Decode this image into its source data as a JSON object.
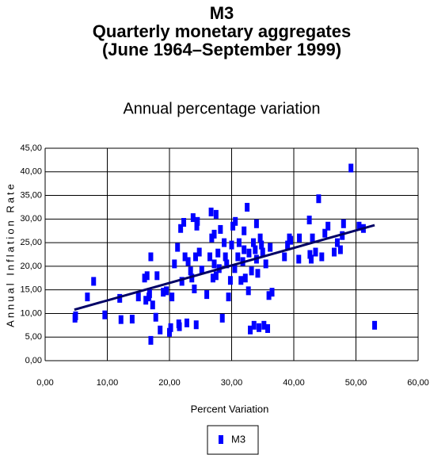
{
  "chart_data": {
    "type": "scatter",
    "title": [
      "M3",
      "Quarterly monetary aggregates",
      "(June 1964–September 1999)"
    ],
    "subtitle": "Annual percentage variation",
    "x_label": "Percent Variation",
    "y_label": "Annual Inflation Rate",
    "xlim": [
      0,
      60
    ],
    "ylim": [
      0,
      45
    ],
    "xticks": [
      {
        "value": 0,
        "label": "0,00"
      },
      {
        "value": 10,
        "label": "10,00"
      },
      {
        "value": 20,
        "label": "20,00"
      },
      {
        "value": 30,
        "label": "30,00"
      },
      {
        "value": 40,
        "label": "40,00"
      },
      {
        "value": 50,
        "label": "50,00"
      },
      {
        "value": 60,
        "label": "60,00"
      }
    ],
    "yticks": [
      {
        "value": 0,
        "label": "0,00"
      },
      {
        "value": 5,
        "label": "5,00"
      },
      {
        "value": 10,
        "label": "10,00"
      },
      {
        "value": 15,
        "label": "15,00"
      },
      {
        "value": 20,
        "label": "20,00"
      },
      {
        "value": 25,
        "label": "25,00"
      },
      {
        "value": 30,
        "label": "30,00"
      },
      {
        "value": 35,
        "label": "35,00"
      },
      {
        "value": 40,
        "label": "40,00"
      },
      {
        "value": 45,
        "label": "45,00"
      }
    ],
    "grid": true,
    "series": [
      {
        "name": "M3",
        "color": "#0000ff",
        "x": [
          4.8,
          4.9,
          6.8,
          7.8,
          9.6,
          12.0,
          12.2,
          14.0,
          15.0,
          16.0,
          16.2,
          16.4,
          16.7,
          16.8,
          17.0,
          17.0,
          17.3,
          17.8,
          18.0,
          18.5,
          19.0,
          19.5,
          20.0,
          20.2,
          20.4,
          20.8,
          21.3,
          21.5,
          21.6,
          21.8,
          22.0,
          22.3,
          22.5,
          22.8,
          23.0,
          23.4,
          23.6,
          23.8,
          24.0,
          24.2,
          24.3,
          24.4,
          24.5,
          24.8,
          25.2,
          26.0,
          26.5,
          26.7,
          26.8,
          27.0,
          27.2,
          27.2,
          27.5,
          27.5,
          27.8,
          28.0,
          28.2,
          28.5,
          28.8,
          29.0,
          29.2,
          29.5,
          29.8,
          30.0,
          30.2,
          30.5,
          30.6,
          31.0,
          31.2,
          31.5,
          31.8,
          32.0,
          32.0,
          32.2,
          32.5,
          32.7,
          32.8,
          33.0,
          33.2,
          33.5,
          33.6,
          33.8,
          34.0,
          34.0,
          34.2,
          34.4,
          34.6,
          34.8,
          35.0,
          35.2,
          35.5,
          35.8,
          36.0,
          36.2,
          36.5,
          38.5,
          39.0,
          39.3,
          39.5,
          40.8,
          40.9,
          42.5,
          42.6,
          42.8,
          43.0,
          43.5,
          44.0,
          44.5,
          45.0,
          45.5,
          46.5,
          47.0,
          47.5,
          47.8,
          48.0,
          49.2,
          50.5,
          51.2,
          53.0
        ],
        "values": [
          9.0,
          9.5,
          13.5,
          16.8,
          9.7,
          13.2,
          8.7,
          8.8,
          13.5,
          17.5,
          12.8,
          18.0,
          13.5,
          14.2,
          22.0,
          4.3,
          11.8,
          9.2,
          18.0,
          6.5,
          14.5,
          14.8,
          6.0,
          7.0,
          13.5,
          20.5,
          24.0,
          7.8,
          7.2,
          28.0,
          16.8,
          29.3,
          22.0,
          8.0,
          21.0,
          19.0,
          17.5,
          30.3,
          15.2,
          22.0,
          7.6,
          28.5,
          29.5,
          23.0,
          19.2,
          14.0,
          22.0,
          31.5,
          26.0,
          17.5,
          20.5,
          26.8,
          31.0,
          18.0,
          22.8,
          19.5,
          27.8,
          9.0,
          25.0,
          22.0,
          20.5,
          13.5,
          17.0,
          24.5,
          28.5,
          19.5,
          29.5,
          22.0,
          25.0,
          17.0,
          21.0,
          23.5,
          27.5,
          17.5,
          32.5,
          14.8,
          22.8,
          6.5,
          19.0,
          25.0,
          7.5,
          23.5,
          21.5,
          29.0,
          18.5,
          7.0,
          26.0,
          24.5,
          23.0,
          7.5,
          20.5,
          6.8,
          13.8,
          24.0,
          14.5,
          22.0,
          24.5,
          26.0,
          25.5,
          21.5,
          26.0,
          29.8,
          22.5,
          21.5,
          26.0,
          23.0,
          34.3,
          22.0,
          27.0,
          28.5,
          23.0,
          25.0,
          23.5,
          26.5,
          29.0,
          40.8,
          28.5,
          28.0,
          7.5
        ]
      }
    ],
    "trendline": {
      "color": "#000066",
      "x": [
        4.7,
        53
      ],
      "y": [
        10.8,
        28.7
      ]
    }
  }
}
